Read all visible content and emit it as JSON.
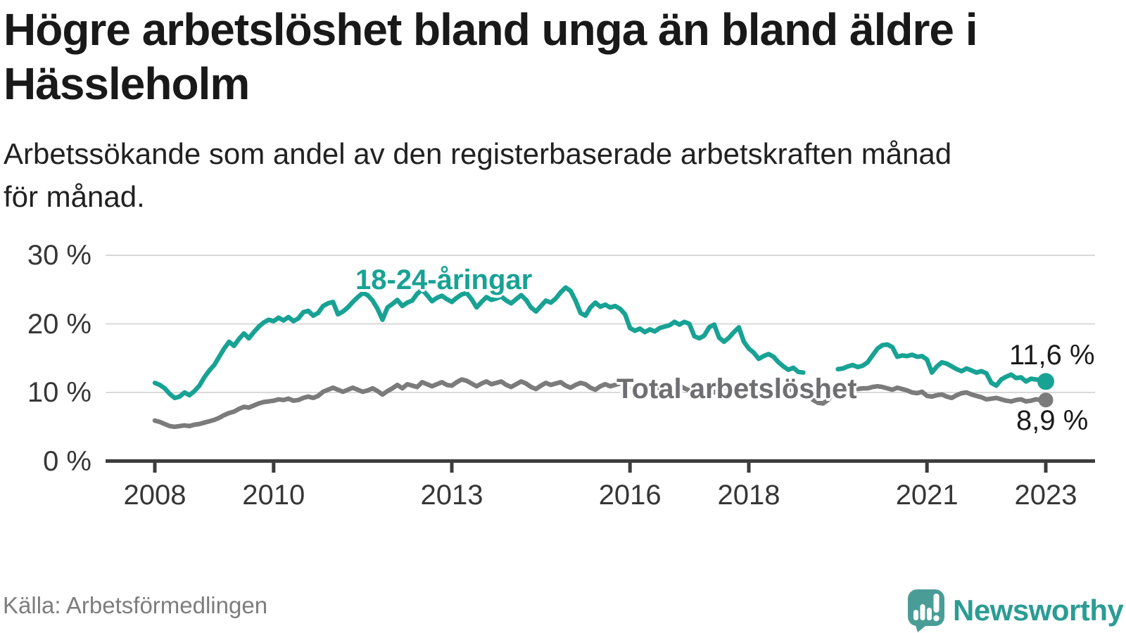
{
  "header": {
    "title_lines": [
      "Högre arbetslöshet bland unga än bland äldre i",
      "Hässleholm"
    ],
    "subtitle_lines": [
      "Arbetssökande som andel av den registerbaserade arbetskraften månad",
      "för månad."
    ]
  },
  "chart_data": {
    "type": "line",
    "unit": "%",
    "x_start": "2008-01",
    "x_interval": "monthly",
    "x_end": "2023-01",
    "grid": "horizontal-only",
    "y_axis": {
      "values": [
        0,
        10,
        20,
        30
      ],
      "ticks": [
        "0 %",
        "10 %",
        "20 %",
        "30 %"
      ],
      "ylim": [
        0,
        30
      ]
    },
    "x_axis": {
      "tick_years": [
        2008,
        2010,
        2013,
        2016,
        2018,
        2021,
        2023
      ],
      "tick_labels": [
        "2008",
        "2010",
        "2013",
        "2016",
        "2018",
        "2021",
        "2023"
      ]
    },
    "series": [
      {
        "name": "18-24-åringar",
        "color": "#17a294",
        "end_label": "11,6 %",
        "end_value": 11.6,
        "values": [
          11.4,
          11.1,
          10.6,
          9.8,
          9.2,
          9.4,
          10.0,
          9.6,
          10.2,
          11.0,
          12.2,
          13.2,
          14.0,
          15.2,
          16.4,
          17.4,
          16.8,
          17.8,
          18.6,
          17.9,
          18.8,
          19.6,
          20.2,
          20.6,
          20.4,
          20.9,
          20.5,
          21.0,
          20.4,
          20.8,
          21.7,
          21.9,
          21.2,
          21.6,
          22.6,
          23.0,
          23.2,
          21.4,
          21.8,
          22.4,
          23.2,
          23.9,
          24.5,
          24.2,
          23.4,
          22.2,
          20.6,
          22.4,
          22.9,
          23.5,
          22.6,
          23.1,
          23.4,
          24.4,
          25.0,
          24.2,
          23.3,
          23.8,
          24.1,
          23.6,
          23.2,
          23.8,
          24.3,
          24.5,
          23.6,
          22.4,
          23.2,
          23.9,
          23.5,
          23.7,
          24.0,
          23.4,
          23.0,
          23.6,
          24.2,
          23.5,
          22.4,
          21.8,
          22.6,
          23.4,
          23.1,
          23.7,
          24.6,
          25.3,
          24.8,
          23.4,
          21.6,
          21.2,
          22.4,
          23.1,
          22.5,
          22.8,
          22.4,
          22.6,
          22.2,
          21.4,
          19.4,
          19.0,
          19.3,
          18.8,
          19.2,
          18.9,
          19.4,
          19.6,
          19.8,
          20.3,
          19.9,
          20.3,
          20.0,
          18.2,
          17.9,
          18.3,
          19.5,
          19.9,
          18.0,
          17.4,
          18.0,
          18.8,
          19.5,
          17.4,
          16.4,
          15.8,
          14.9,
          15.3,
          15.6,
          15.2,
          14.4,
          13.8,
          13.3,
          13.6,
          13.0,
          12.9,
          null,
          null,
          null,
          null,
          null,
          null,
          13.4,
          13.5,
          13.8,
          14.0,
          13.7,
          13.9,
          14.4,
          15.4,
          16.4,
          16.9,
          17.0,
          16.6,
          15.2,
          15.4,
          15.3,
          15.5,
          15.2,
          15.3,
          14.8,
          12.9,
          13.8,
          14.4,
          14.2,
          13.8,
          13.4,
          13.1,
          13.5,
          13.2,
          12.9,
          13.1,
          12.8,
          11.4,
          11.0,
          11.9,
          12.3,
          12.6,
          12.1,
          12.2,
          11.6,
          12.0,
          11.9,
          11.8,
          11.6
        ]
      },
      {
        "name": "Total arbetslöshet",
        "color": "#7b7b7b",
        "end_label": "8,9 %",
        "end_value": 8.9,
        "values": [
          5.9,
          5.7,
          5.4,
          5.1,
          5.0,
          5.1,
          5.2,
          5.1,
          5.3,
          5.4,
          5.6,
          5.8,
          6.0,
          6.3,
          6.7,
          7.0,
          7.2,
          7.6,
          7.9,
          7.8,
          8.1,
          8.4,
          8.6,
          8.7,
          8.8,
          9.0,
          8.9,
          9.1,
          8.8,
          8.9,
          9.2,
          9.4,
          9.2,
          9.5,
          10.1,
          10.4,
          10.7,
          10.4,
          10.1,
          10.4,
          10.7,
          10.4,
          10.1,
          10.3,
          10.6,
          10.2,
          9.7,
          10.2,
          10.6,
          11.1,
          10.6,
          11.2,
          11.0,
          10.8,
          11.5,
          11.2,
          10.9,
          11.2,
          11.5,
          11.1,
          11.0,
          11.5,
          11.9,
          11.7,
          11.3,
          10.9,
          11.3,
          11.6,
          11.2,
          11.4,
          11.6,
          11.1,
          10.8,
          11.2,
          11.6,
          11.3,
          10.8,
          10.5,
          11.0,
          11.4,
          11.1,
          11.3,
          11.5,
          11.0,
          10.7,
          11.1,
          11.4,
          11.2,
          10.7,
          10.4,
          10.9,
          11.2,
          10.9,
          11.1,
          11.3,
          10.8,
          10.4,
          10.7,
          11.0,
          10.8,
          10.3,
          10.0,
          10.5,
          10.8,
          10.6,
          10.8,
          11.0,
          10.6,
          10.3,
          10.6,
          10.9,
          10.7,
          10.3,
          10.0,
          10.4,
          10.7,
          10.5,
          10.7,
          10.9,
          10.5,
          10.2,
          10.5,
          10.8,
          10.6,
          10.2,
          9.9,
          10.3,
          10.6,
          10.4,
          10.5,
          10.7,
          10.3,
          9.6,
          8.9,
          8.5,
          8.4,
          8.9,
          9.8,
          10.3,
          10.4,
          10.6,
          10.7,
          10.5,
          10.6,
          10.6,
          10.8,
          10.9,
          10.8,
          10.6,
          10.4,
          10.7,
          10.5,
          10.3,
          10.0,
          9.9,
          10.1,
          9.5,
          9.4,
          9.6,
          9.7,
          9.4,
          9.2,
          9.6,
          9.9,
          10.0,
          9.7,
          9.5,
          9.3,
          9.0,
          9.1,
          9.2,
          9.0,
          8.8,
          8.7,
          8.9,
          9.0,
          8.7,
          8.8,
          9.0,
          8.9,
          8.9
        ]
      }
    ]
  },
  "footer": {
    "source": "Källa: Arbetsförmedlingen",
    "brand": "Newsworthy"
  },
  "colors": {
    "youth_line": "#17a294",
    "total_line": "#7b7b7b",
    "total_label": "#6f6f73",
    "axis": "#3d3d3d",
    "gridline": "#d9d9d9",
    "text_dark": "#191919",
    "source_text": "#7d7d7d",
    "brand_teal": "#2b9c94",
    "logo_bubble": "#4a9d97"
  }
}
